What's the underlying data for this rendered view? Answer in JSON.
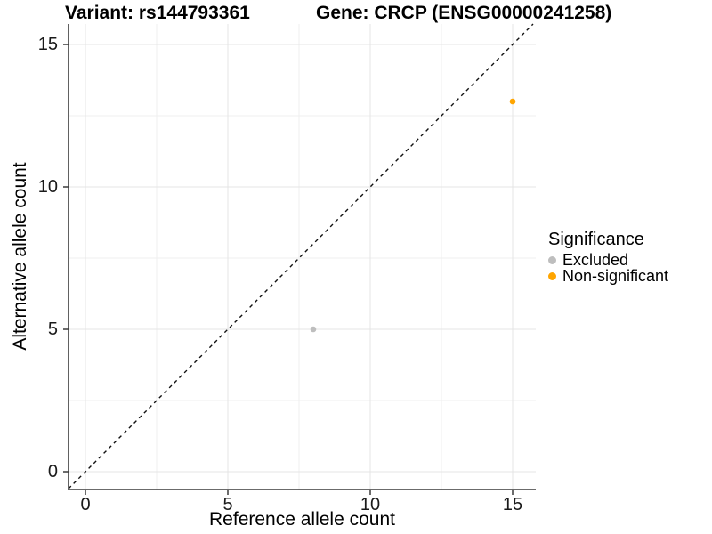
{
  "titles": {
    "variant": "Variant: rs144793361",
    "gene": "Gene: CRCP (ENSG00000241258)"
  },
  "chart_data": {
    "type": "scatter",
    "title": "Variant: rs144793361   Gene: CRCP (ENSG00000241258)",
    "xlabel": "Reference allele count",
    "ylabel": "Alternative allele count",
    "xlim": [
      -0.75,
      15.85
    ],
    "ylim": [
      -0.65,
      15.75
    ],
    "xticks": [
      0,
      5,
      10,
      15
    ],
    "yticks": [
      0,
      5,
      10,
      15
    ],
    "minor_ticks": [
      2.5,
      7.5,
      12.5
    ],
    "grid": true,
    "reference_line": {
      "type": "identity y=x",
      "style": "dashed",
      "color": "#111111"
    },
    "series": [
      {
        "name": "Excluded",
        "color": "#BEBEBE",
        "points": [
          {
            "x": 8,
            "y": 5
          }
        ]
      },
      {
        "name": "Non-significant",
        "color": "#FFA500",
        "points": [
          {
            "x": 15,
            "y": 13
          }
        ]
      }
    ],
    "legend": {
      "title": "Significance",
      "position": "right",
      "items": [
        {
          "label": "Excluded",
          "color": "#BEBEBE"
        },
        {
          "label": "Non-significant",
          "color": "#FFA500"
        }
      ]
    }
  },
  "colors": {
    "background": "#ffffff",
    "grid_major": "#e4e4e4",
    "grid_minor": "#efefef",
    "axis_line": "#3a3a3a",
    "tick_text": "#1a1a1a",
    "point_excluded": "#BEBEBE",
    "point_non_significant": "#FFA500"
  }
}
